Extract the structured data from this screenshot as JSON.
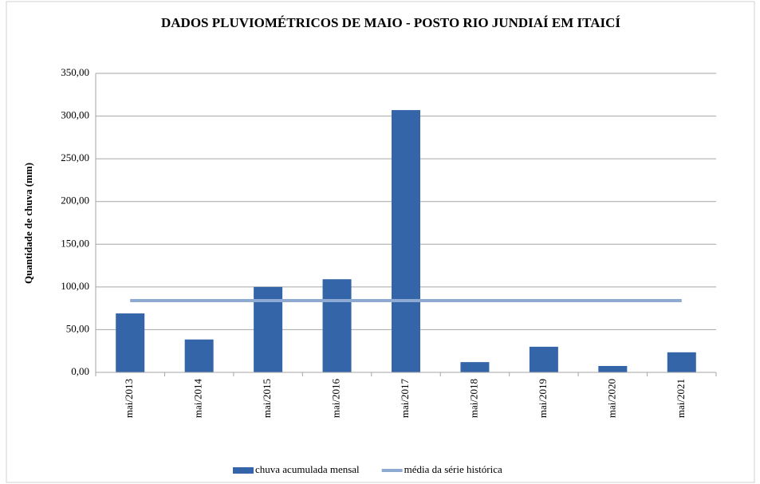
{
  "chart_data": {
    "type": "bar",
    "title": "DADOS PLUVIOMÉTRICOS DE MAIO - POSTO RIO JUNDIAÍ EM ITAICÍ",
    "y_label": "Quantidade de chuva (mm)",
    "categories": [
      "mai/2013",
      "mai/2014",
      "mai/2015",
      "mai/2016",
      "mai/2017",
      "mai/2018",
      "mai/2019",
      "mai/2020",
      "mai/2021"
    ],
    "series": [
      {
        "name": "chuva acumulada mensal",
        "type": "bar",
        "color": "#3465a8",
        "values": [
          69,
          38.5,
          100,
          109,
          307,
          12,
          30,
          7.5,
          23.5
        ]
      },
      {
        "name": "média da série histórica",
        "type": "line",
        "color": "#8eaad2",
        "values": [
          84,
          84,
          84,
          84,
          84,
          84,
          84,
          84,
          84
        ]
      }
    ],
    "ylim": [
      0,
      350
    ],
    "yticks": [
      {
        "value": 0,
        "label": "0,00"
      },
      {
        "value": 50,
        "label": "50,00"
      },
      {
        "value": 100,
        "label": "100,00"
      },
      {
        "value": 150,
        "label": "150,00"
      },
      {
        "value": 200,
        "label": "200,00"
      },
      {
        "value": 250,
        "label": "250,00"
      },
      {
        "value": 300,
        "label": "300,00"
      },
      {
        "value": 350,
        "label": "350,00"
      }
    ],
    "grid": true,
    "legend": "bottom"
  }
}
